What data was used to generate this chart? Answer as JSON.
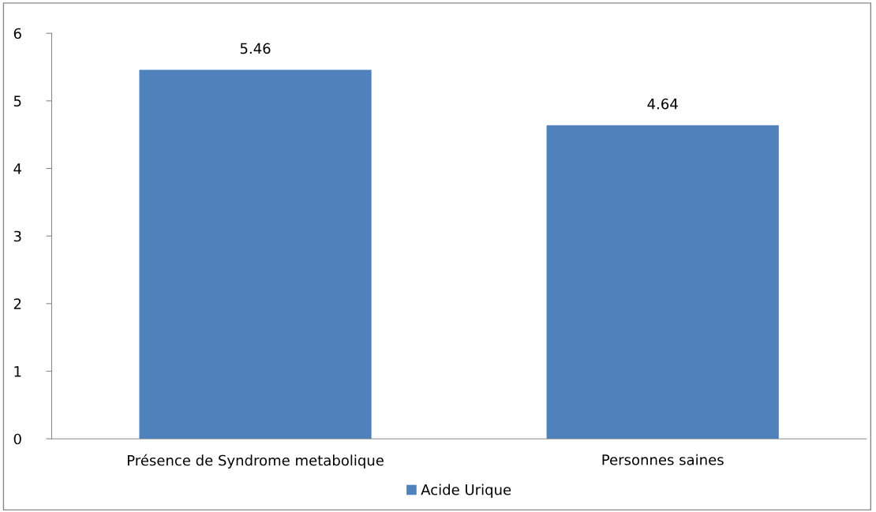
{
  "chart_data": {
    "type": "bar",
    "categories": [
      "Présence de Syndrome metabolique",
      "Personnes saines"
    ],
    "series": [
      {
        "name": "Acide Urique",
        "color": "#4f81bd",
        "values": [
          5.46,
          4.64
        ]
      }
    ],
    "ylim": [
      0,
      6
    ],
    "yticks": [
      0,
      1,
      2,
      3,
      4,
      5,
      6
    ],
    "grid": false,
    "legend": "bottom",
    "data_labels": true
  }
}
